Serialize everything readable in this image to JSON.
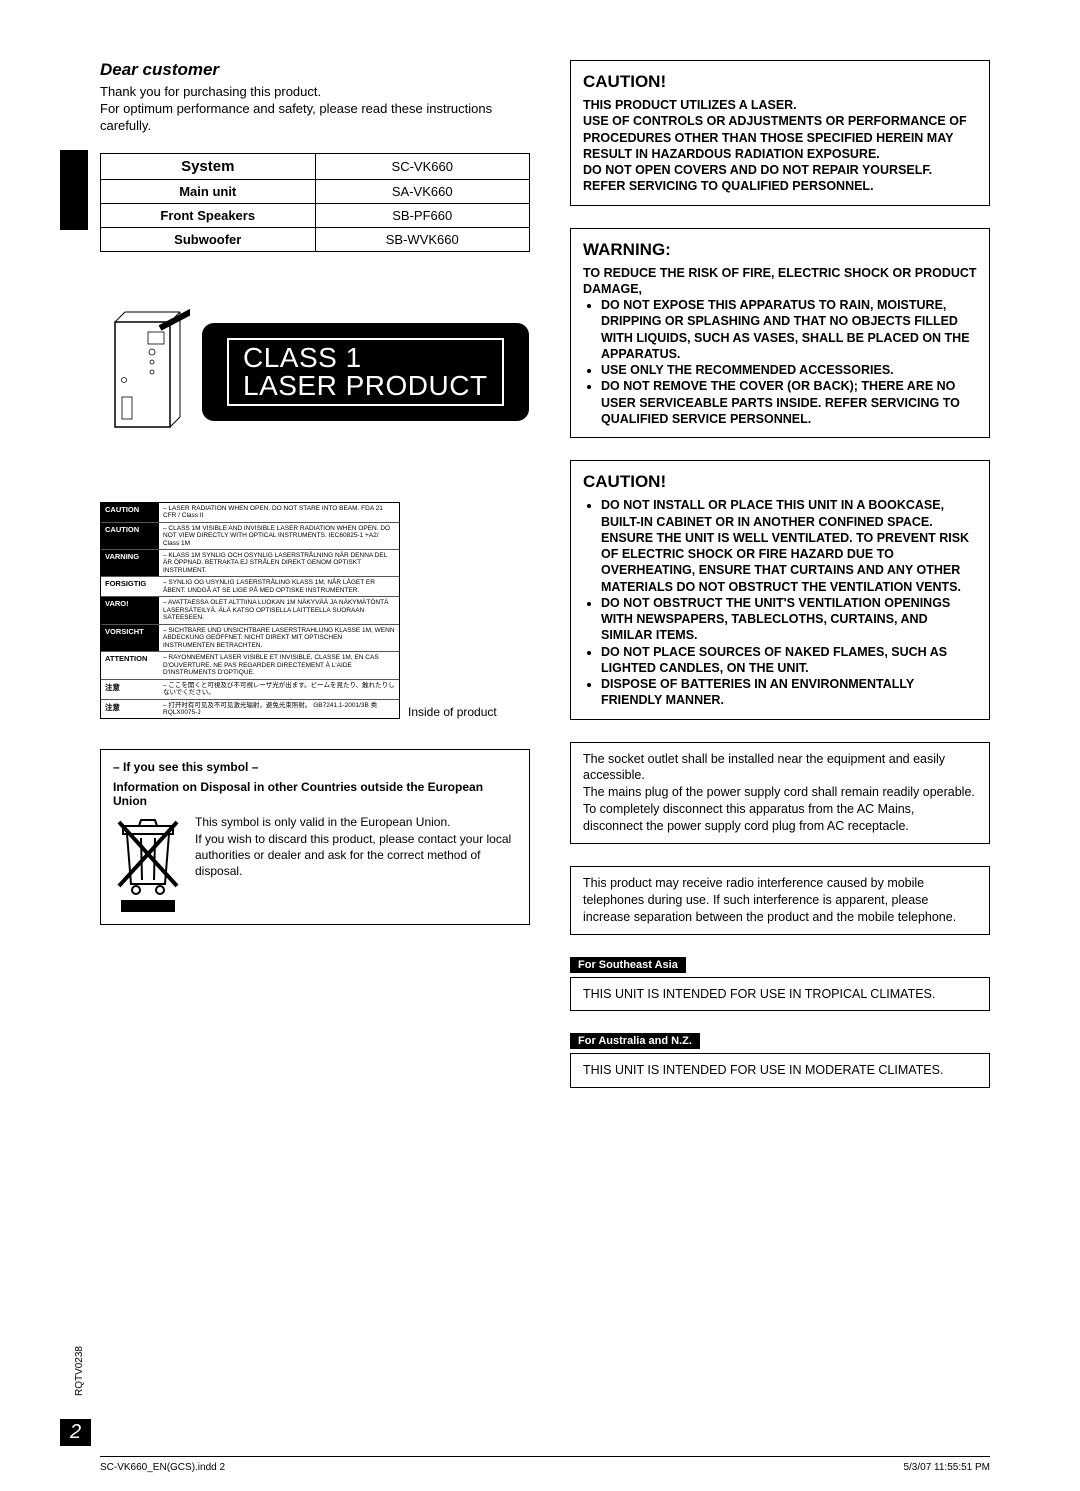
{
  "intro": {
    "heading": "Dear customer",
    "line1": "Thank you for purchasing this product.",
    "line2": "For optimum performance and safety, please read these instructions carefully."
  },
  "system_table": {
    "rows": [
      {
        "label": "System",
        "value": "SC-VK660"
      },
      {
        "label": "Main unit",
        "value": "SA-VK660"
      },
      {
        "label": "Front Speakers",
        "value": "SB-PF660"
      },
      {
        "label": "Subwoofer",
        "value": "SB-WVK660"
      }
    ]
  },
  "class1": {
    "line1": "CLASS 1",
    "line2": "LASER PRODUCT"
  },
  "laser_labels": [
    {
      "key": "CAUTION",
      "inv": true,
      "text": "– LASER RADIATION WHEN OPEN. DO NOT STARE INTO BEAM.     FDA 21 CFR / Class II"
    },
    {
      "key": "CAUTION",
      "inv": true,
      "text": "– CLASS 1M VISIBLE AND INVISIBLE LASER RADIATION WHEN OPEN. DO NOT VIEW DIRECTLY WITH OPTICAL INSTRUMENTS.   IEC60825-1 +A2/ Class 1M"
    },
    {
      "key": "VARNING",
      "inv": true,
      "text": "– KLASS 1M SYNLIG OCH OSYNLIG LASERSTRÅLNING NÄR DENNA DEL ÄR ÖPPNAD. BETRAKTA EJ STRÅLEN DIREKT GENOM OPTISKT INSTRUMENT."
    },
    {
      "key": "FORSIGTIG",
      "inv": false,
      "text": "– SYNLIG OG USYNLIG LASERSTRÅLING KLASS 1M, NÅR LÅGET ER ÅBENT. UNDGÅ AT SE LIGE PÅ MED OPTISKE INSTRUMENTER."
    },
    {
      "key": "VARO!",
      "inv": true,
      "text": "– AVATTAESSA OLET ALTTIINA LUOKAN 1M NÄKYVÄÄ JA NÄKYMÄTÖNTÄ LASERSÄTEILYÄ. ÄLÄ KATSO OPTISELLA LAITTEELLA SUORAAN SÄTEESEEN."
    },
    {
      "key": "VORSICHT",
      "inv": true,
      "text": "– SICHTBARE UND UNSICHTBARE LASERSTRAHLUNG KLASSE 1M, WENN ABDECKUNG GEÖFFNET. NICHT DIREKT MIT OPTISCHEN INSTRUMENTEN BETRACHTEN."
    },
    {
      "key": "ATTENTION",
      "inv": false,
      "text": "– RAYONNEMENT LASER VISIBLE ET INVISIBLE, CLASSE 1M, EN CAS D'OUVERTURE. NE PAS REGARDER DIRECTEMENT À L'AIDE D'INSTRUMENTS D'OPTIQUE."
    },
    {
      "key": "注意",
      "inv": false,
      "text": "– ここを開くと可視及び不可視レーザ光が出ます。ビームを見たり、触れたりしないでください。"
    },
    {
      "key": "注意",
      "inv": false,
      "text": "– 打开时有可见及不可见激光辐射，避免光束照射。   GB7241.1-2001/3B 类        RQLX0075-J"
    }
  ],
  "inside_note": "Inside of product",
  "symbol": {
    "heading": "– If you see this symbol –",
    "subheading": "Information on Disposal in other Countries outside the European Union",
    "text": "This symbol is only valid in the European Union.\nIf you wish to discard this product, please contact your local authorities or dealer and ask for the correct method of disposal."
  },
  "caution1": {
    "title": "CAUTION!",
    "body": "THIS PRODUCT UTILIZES A LASER.\nUSE OF CONTROLS OR ADJUSTMENTS OR PERFORMANCE OF PROCEDURES OTHER THAN THOSE SPECIFIED HEREIN MAY RESULT IN HAZARDOUS RADIATION EXPOSURE.\nDO NOT OPEN COVERS AND DO NOT REPAIR YOURSELF. REFER SERVICING TO QUALIFIED PERSONNEL."
  },
  "warning": {
    "title": "WARNING:",
    "lead": "TO REDUCE THE RISK OF FIRE, ELECTRIC SHOCK OR PRODUCT DAMAGE,",
    "items": [
      "DO NOT EXPOSE THIS APPARATUS TO RAIN, MOISTURE, DRIPPING OR SPLASHING AND THAT NO OBJECTS FILLED WITH LIQUIDS, SUCH AS VASES, SHALL BE PLACED ON THE APPARATUS.",
      "USE ONLY THE RECOMMENDED ACCESSORIES.",
      "DO NOT REMOVE THE COVER (OR BACK); THERE ARE NO USER SERVICEABLE PARTS INSIDE. REFER SERVICING TO QUALIFIED SERVICE PERSONNEL."
    ]
  },
  "caution2": {
    "title": "CAUTION!",
    "items": [
      "DO NOT INSTALL OR PLACE THIS UNIT IN A BOOKCASE, BUILT-IN CABINET OR IN ANOTHER CONFINED SPACE. ENSURE THE UNIT IS WELL VENTILATED. TO PREVENT RISK OF ELECTRIC SHOCK OR FIRE HAZARD DUE TO OVERHEATING, ENSURE THAT CURTAINS AND ANY OTHER MATERIALS DO NOT OBSTRUCT THE VENTILATION VENTS.",
      "DO NOT OBSTRUCT THE UNIT'S VENTILATION OPENINGS WITH NEWSPAPERS, TABLECLOTHS, CURTAINS, AND SIMILAR ITEMS.",
      "DO NOT PLACE SOURCES OF NAKED FLAMES, SUCH AS LIGHTED CANDLES, ON THE UNIT.",
      "DISPOSE OF BATTERIES IN AN ENVIRONMENTALLY FRIENDLY MANNER."
    ]
  },
  "socket_note": "The socket outlet shall be installed near the equipment and easily accessible.\nThe mains plug of the power supply cord shall remain readily operable.\nTo completely disconnect this apparatus from the AC Mains, disconnect the power supply cord plug from AC receptacle.",
  "radio_note": "This product may receive radio interference caused by mobile telephones during use. If such interference is apparent, please increase separation between the product and the mobile telephone.",
  "region1": {
    "tag": "For Southeast Asia",
    "text": "THIS UNIT IS INTENDED FOR USE IN TROPICAL CLIMATES."
  },
  "region2": {
    "tag": "For Australia and N.Z.",
    "text": "THIS UNIT IS INTENDED FOR USE IN MODERATE CLIMATES."
  },
  "page_number": "2",
  "doc_code": "RQTV0238",
  "footer": {
    "left": "SC-VK660_EN(GCS).indd   2",
    "right": "5/3/07   11:55:51 PM"
  },
  "colors": {
    "black": "#000000",
    "white": "#ffffff"
  }
}
